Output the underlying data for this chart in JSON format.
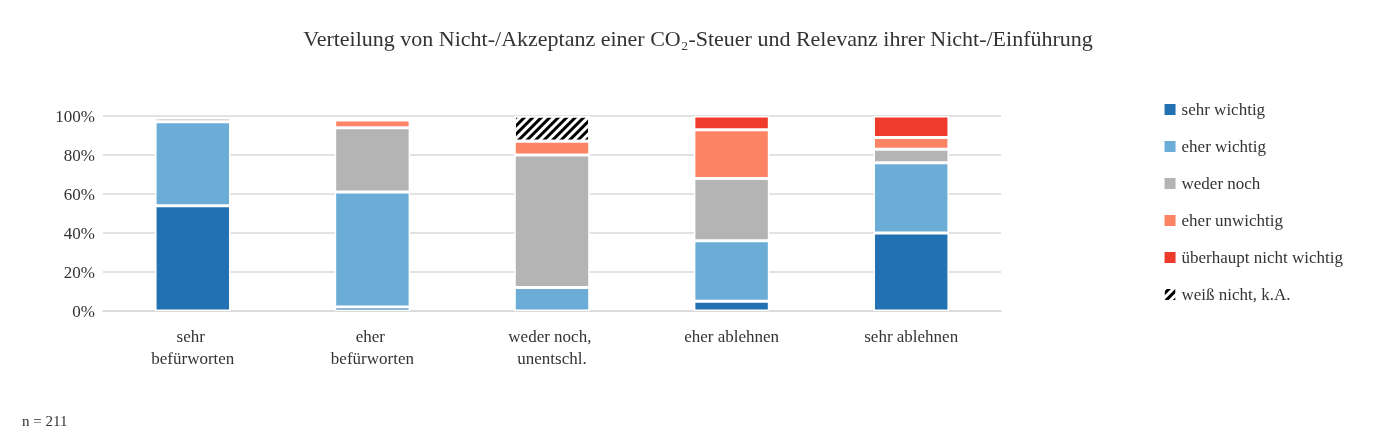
{
  "chart_data": {
    "type": "bar",
    "stacked": true,
    "title": "Verteilung von Nicht-/Akzeptanz einer CO₂-Steuer und Relevanz ihrer Nicht-/Einführung",
    "categories": [
      "sehr befürworten",
      "eher befürworten",
      "weder noch, unentschl.",
      "eher ablehnen",
      "sehr ablehnen"
    ],
    "series": [
      {
        "name": "sehr wichtig",
        "color": "#2271b3",
        "values": [
          54,
          2,
          0,
          5,
          40
        ]
      },
      {
        "name": "eher wichtig",
        "color": "#6badd6",
        "values": [
          43,
          59,
          12,
          31,
          36
        ]
      },
      {
        "name": "weder noch",
        "color": "#b4b4b4",
        "values": [
          2,
          33,
          68,
          32,
          7
        ]
      },
      {
        "name": "eher unwichtig",
        "color": "#fc8464",
        "values": [
          0,
          4,
          7,
          25,
          6
        ]
      },
      {
        "name": "überhaupt nicht wichtig",
        "color": "#ee3b2c",
        "values": [
          0,
          0,
          0,
          7,
          11
        ]
      },
      {
        "name": "weiß nicht, k.A.",
        "color": "#000000",
        "values": [
          0,
          0,
          13,
          0,
          0
        ]
      }
    ],
    "ylim": [
      0,
      100
    ],
    "yticks": [
      {
        "value": 0,
        "label": "0%"
      },
      {
        "value": 20,
        "label": "20%"
      },
      {
        "value": 40,
        "label": "40%"
      },
      {
        "value": 60,
        "label": "60%"
      },
      {
        "value": 80,
        "label": "80%"
      },
      {
        "value": 100,
        "label": "100%"
      }
    ],
    "grid": "y",
    "legend": "right",
    "annotations": [
      "n = 211"
    ]
  }
}
